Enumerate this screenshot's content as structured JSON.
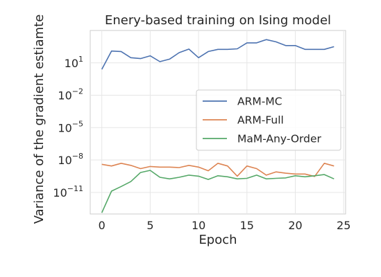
{
  "chart_data": {
    "type": "line",
    "title": "Enery-based training on Ising model",
    "xlabel": "Epoch",
    "ylabel": "Variance of the gradient estiamte",
    "xlim": [
      -1.2,
      25.2
    ],
    "ylim": [
      1e-13,
      10000.0
    ],
    "yscale": "log",
    "xticks": [
      0,
      5,
      10,
      15,
      20,
      25
    ],
    "xtick_labels": [
      "0",
      "5",
      "10",
      "15",
      "20",
      "25"
    ],
    "yticks": [
      {
        "value": 10.0,
        "base": "10",
        "exp": "1"
      },
      {
        "value": 0.01,
        "base": "10",
        "exp": "−2"
      },
      {
        "value": 1e-05,
        "base": "10",
        "exp": "−5"
      },
      {
        "value": 1e-08,
        "base": "10",
        "exp": "−8"
      },
      {
        "value": 1e-11,
        "base": "10",
        "exp": "−11"
      }
    ],
    "grid": true,
    "legend_position": "center-right",
    "x": [
      0,
      1,
      2,
      3,
      4,
      5,
      6,
      7,
      8,
      9,
      10,
      11,
      12,
      13,
      14,
      15,
      16,
      17,
      18,
      19,
      20,
      21,
      22,
      23,
      24
    ],
    "series": [
      {
        "name": "ARM-MC",
        "color": "#4c72b0",
        "values": [
          2.5,
          125,
          112,
          30,
          25,
          45,
          13,
          22,
          89,
          188,
          30,
          112,
          178,
          178,
          200,
          708,
          708,
          1413,
          891,
          398,
          398,
          178,
          178,
          178,
          316
        ]
      },
      {
        "name": "ARM-Full",
        "color": "#dd8452",
        "values": [
          4e-09,
          2.8e-09,
          5e-09,
          3.2e-09,
          1.6e-09,
          2.5e-09,
          2.2e-09,
          2.2e-09,
          2e-09,
          3.2e-09,
          2.2e-09,
          1e-09,
          5e-09,
          2.8e-09,
          3.2e-10,
          2.8e-09,
          1.6e-09,
          4e-10,
          8e-10,
          6e-10,
          5e-10,
          5e-10,
          3e-10,
          5e-09,
          2.8e-09
        ]
      },
      {
        "name": "MaM-Any-Order",
        "color": "#55a868",
        "values": [
          1.3e-13,
          1.3e-11,
          3.5e-11,
          1e-10,
          7e-10,
          1.1e-09,
          2.5e-10,
          1.8e-10,
          2.5e-10,
          4e-10,
          3.2e-10,
          1.6e-10,
          3.5e-10,
          2.8e-10,
          1.8e-10,
          2e-10,
          4e-10,
          1.8e-10,
          2e-10,
          2.2e-10,
          3.5e-10,
          2.8e-10,
          3.5e-10,
          4.5e-10,
          1.8e-10
        ]
      }
    ]
  }
}
